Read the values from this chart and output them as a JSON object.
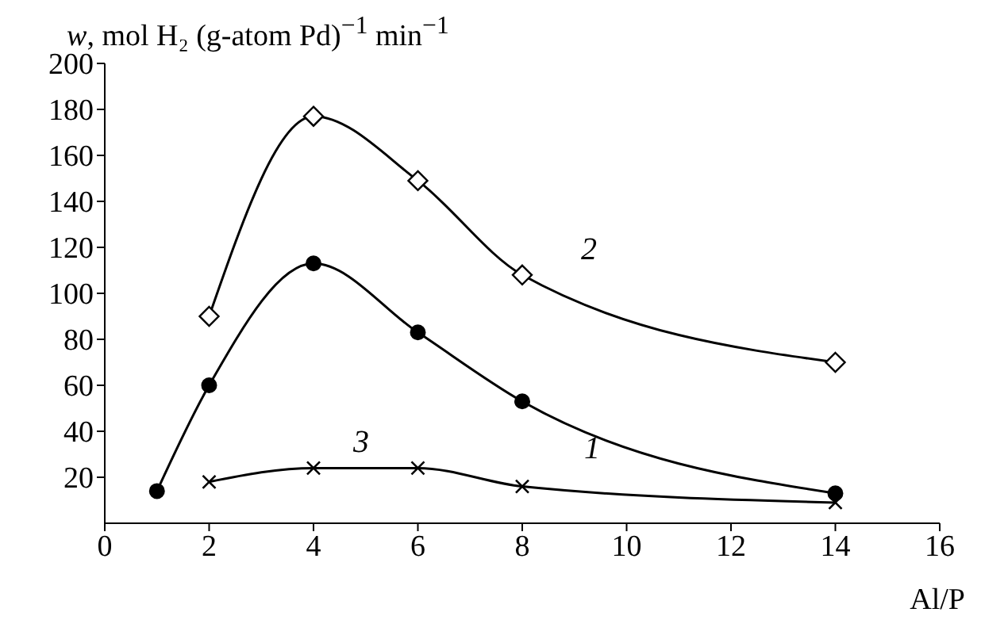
{
  "chart_data": {
    "type": "line",
    "ylabel": "w, mol H₂ (g-atom Pd)$^{−1}$ min$^{−1}$",
    "xlabel": "Al/P",
    "xlim": [
      0,
      16
    ],
    "xticks": [
      0,
      2,
      4,
      6,
      8,
      10,
      12,
      14,
      16
    ],
    "ylim": [
      0,
      200
    ],
    "yticks": [
      20,
      40,
      60,
      80,
      100,
      120,
      140,
      160,
      180,
      200
    ],
    "series": [
      {
        "name": "1",
        "color": "#000000",
        "marker": "circle",
        "x": [
          1,
          2,
          4,
          6,
          8,
          14
        ],
        "values": [
          14,
          60,
          113,
          83,
          53,
          13
        ]
      },
      {
        "name": "2",
        "color": "#000000",
        "marker": "diamond",
        "x": [
          2,
          4,
          6,
          8,
          14
        ],
        "values": [
          90,
          177,
          149,
          108,
          70
        ]
      },
      {
        "name": "3",
        "color": "#000000",
        "marker": "cross",
        "x": [
          2,
          4,
          6,
          8,
          14
        ],
        "values": [
          18,
          24,
          24,
          16,
          9
        ]
      }
    ]
  }
}
